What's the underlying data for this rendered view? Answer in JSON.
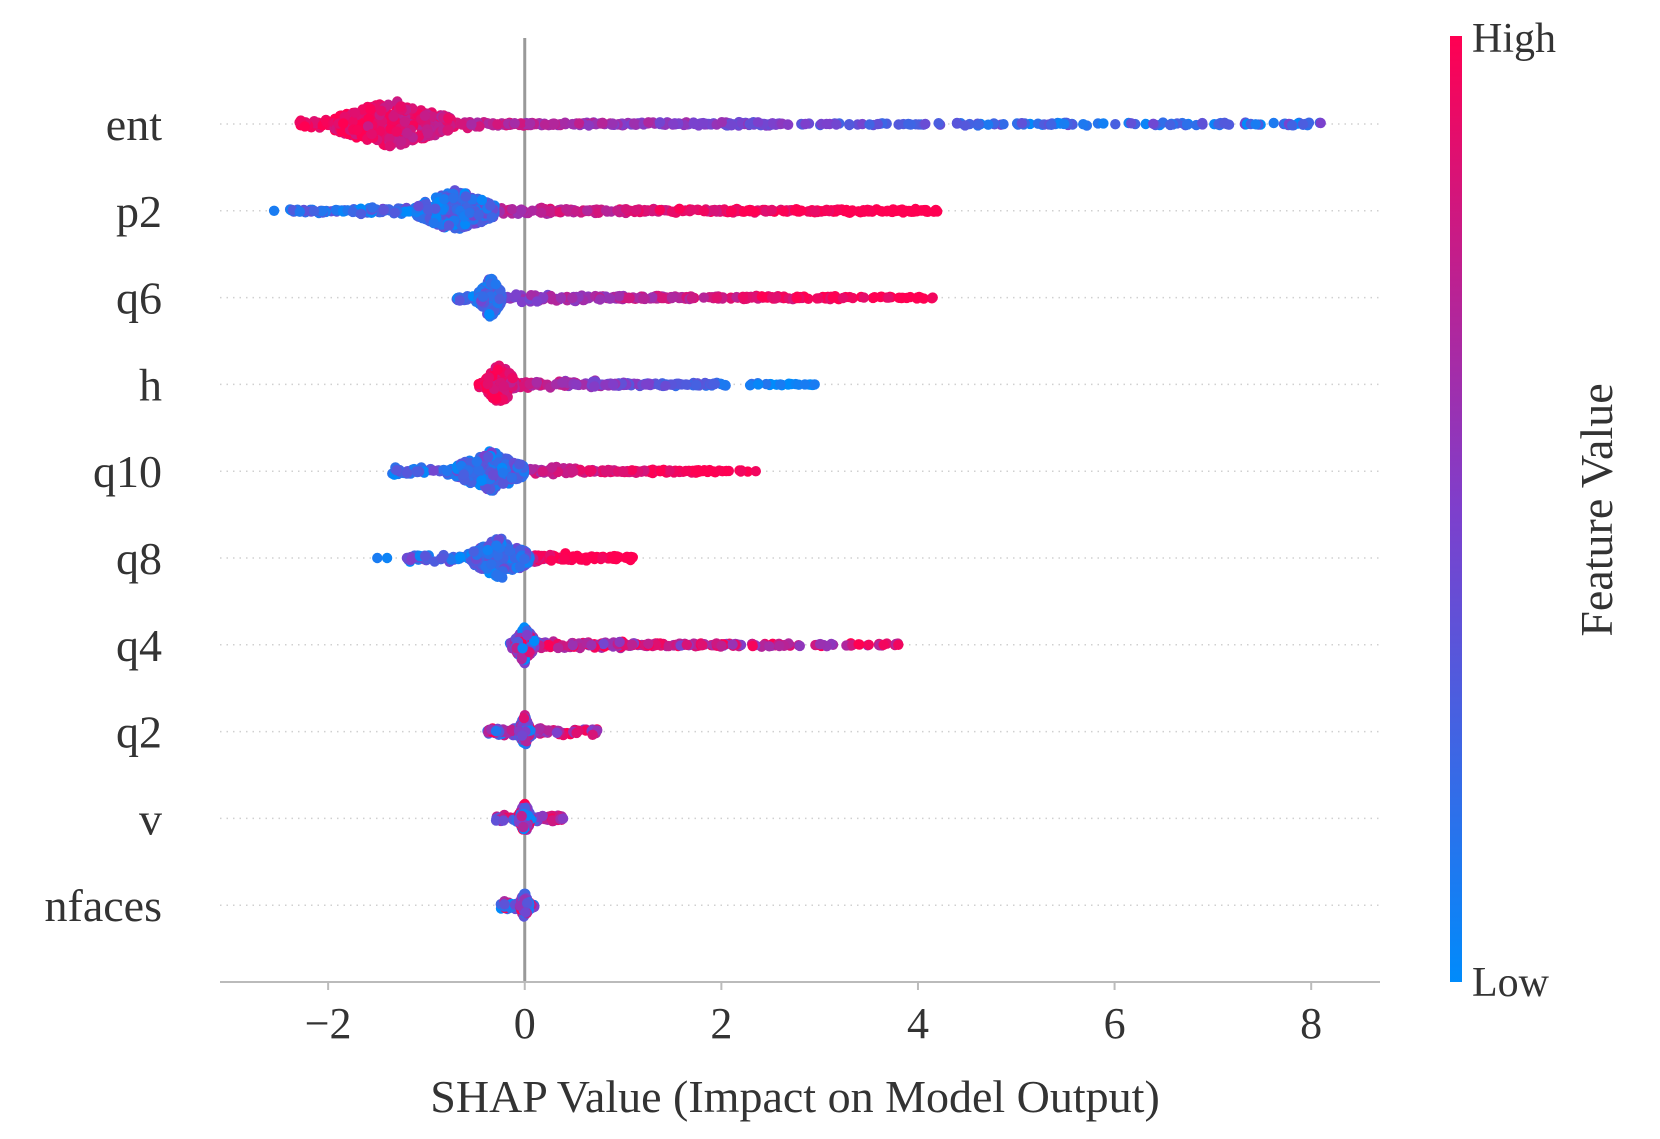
{
  "chart_data": {
    "type": "scatter",
    "subtype": "shap-beeswarm-summary",
    "title": "",
    "xlabel": "SHAP Value (Impact on Model Output)",
    "ylabel": "",
    "xlim": [
      -3.1,
      8.7
    ],
    "xticks": [
      -2,
      0,
      2,
      4,
      6,
      8
    ],
    "xtick_labels": [
      "−2",
      "0",
      "2",
      "4",
      "6",
      "8"
    ],
    "zero_line": 0,
    "grid": "dotted horizontal guides per feature",
    "colorbar": {
      "title": "Feature Value",
      "high_label": "High",
      "low_label": "Low",
      "high_color": "#ff0052",
      "mid_color": "#7e3fcc",
      "low_color": "#008bfb"
    },
    "features": [
      {
        "name": "ent",
        "dense_min": -2.3,
        "dense_max": 2.6,
        "min": -2.3,
        "max": 8.1,
        "cluster_center": -1.35,
        "cluster_halfwidth": 0.6,
        "cluster_height": 0.48,
        "low_side": "high",
        "outliers": []
      },
      {
        "name": "p2",
        "dense_min": -2.4,
        "dense_max": 4.2,
        "min": -2.6,
        "max": 4.2,
        "cluster_center": -0.7,
        "cluster_halfwidth": 0.4,
        "cluster_height": 0.42,
        "low_side": "low",
        "outliers": [
          [
            -2.55,
            0.1
          ]
        ]
      },
      {
        "name": "q6",
        "dense_min": -0.7,
        "dense_max": 3.2,
        "min": -0.7,
        "max": 4.15,
        "cluster_center": -0.35,
        "cluster_halfwidth": 0.12,
        "cluster_height": 0.4,
        "low_side": "low",
        "outliers": [
          [
            3.45,
            0.9
          ],
          [
            3.7,
            0.9
          ],
          [
            4.15,
            0.95
          ]
        ]
      },
      {
        "name": "h",
        "dense_min": -0.5,
        "dense_max": 2.1,
        "min": -0.5,
        "max": 2.95,
        "cluster_center": -0.25,
        "cluster_halfwidth": 0.15,
        "cluster_height": 0.42,
        "low_side": "high",
        "outliers": [
          [
            2.6,
            0.1
          ],
          [
            2.95,
            0.1
          ],
          [
            2.85,
            0.1
          ]
        ]
      },
      {
        "name": "q10",
        "dense_min": -1.35,
        "dense_max": 1.85,
        "min": -1.35,
        "max": 2.35,
        "cluster_center": -0.35,
        "cluster_halfwidth": 0.35,
        "cluster_height": 0.4,
        "low_side": "low",
        "outliers": [
          [
            2.2,
            0.95
          ],
          [
            2.35,
            0.95
          ]
        ]
      },
      {
        "name": "q8",
        "dense_min": -1.2,
        "dense_max": 1.1,
        "min": -1.5,
        "max": 1.1,
        "cluster_center": -0.25,
        "cluster_halfwidth": 0.3,
        "cluster_height": 0.4,
        "low_side": "low",
        "outliers": [
          [
            -1.5,
            0.1
          ],
          [
            -1.4,
            0.05
          ]
        ]
      },
      {
        "name": "q4",
        "dense_min": -0.2,
        "dense_max": 2.7,
        "min": -0.2,
        "max": 3.8,
        "cluster_center": 0.0,
        "cluster_halfwidth": 0.1,
        "cluster_height": 0.4,
        "low_side": "mixed",
        "outliers": [
          [
            3.5,
            0.95
          ],
          [
            3.65,
            0.95
          ],
          [
            3.8,
            0.95
          ]
        ]
      },
      {
        "name": "q2",
        "dense_min": -0.4,
        "dense_max": 0.75,
        "min": -0.4,
        "max": 0.75,
        "cluster_center": 0.0,
        "cluster_halfwidth": 0.06,
        "cluster_height": 0.32,
        "low_side": "mixed",
        "outliers": []
      },
      {
        "name": "v",
        "dense_min": -0.3,
        "dense_max": 0.4,
        "min": -0.3,
        "max": 0.4,
        "cluster_center": 0.0,
        "cluster_halfwidth": 0.06,
        "cluster_height": 0.3,
        "low_side": "mixed",
        "outliers": []
      },
      {
        "name": "nfaces",
        "dense_min": -0.25,
        "dense_max": 0.1,
        "min": -0.25,
        "max": 0.1,
        "cluster_center": 0.0,
        "cluster_halfwidth": 0.05,
        "cluster_height": 0.26,
        "low_side": "mixed",
        "outliers": []
      }
    ]
  }
}
